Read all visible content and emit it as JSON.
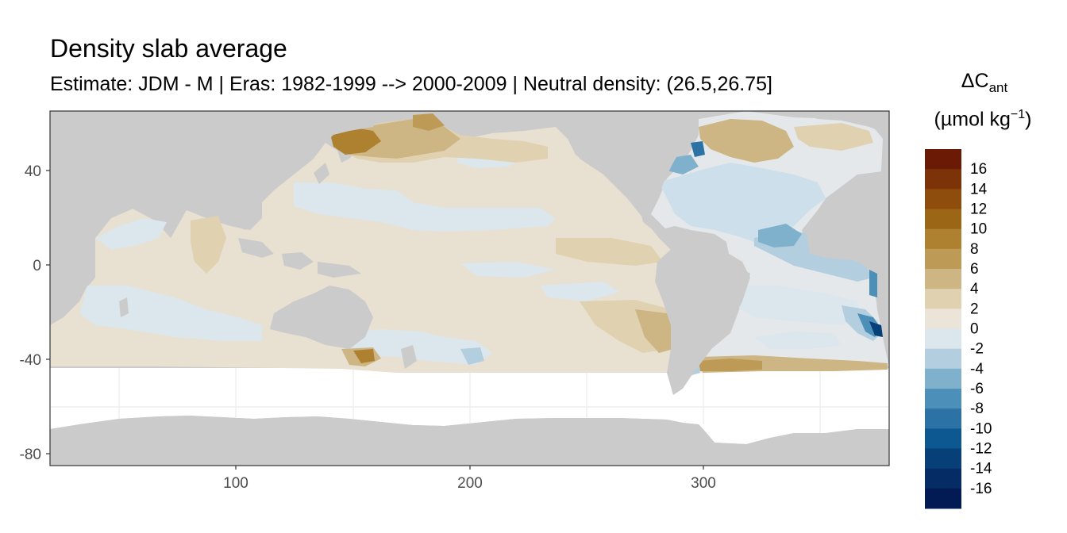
{
  "title": "Density slab average",
  "subtitle": "Estimate: JDM - M | Eras: 1982-1999 --> 2000-2009 | Neutral density: (26.5,26.75]",
  "legend": {
    "title_symbol": "ΔC",
    "title_subscript": "ant",
    "unit_prefix": "(µmol kg",
    "unit_superscript": "−1",
    "unit_suffix": ")",
    "breaks": [
      {
        "label": "16",
        "color": "#6b1a05"
      },
      {
        "label": "14",
        "color": "#7d3308"
      },
      {
        "label": "12",
        "color": "#8e4d0c"
      },
      {
        "label": "10",
        "color": "#9c6617"
      },
      {
        "label": "8",
        "color": "#ad812f"
      },
      {
        "label": "6",
        "color": "#bd9b56"
      },
      {
        "label": "4",
        "color": "#ceb584"
      },
      {
        "label": "2",
        "color": "#e0d1b1"
      },
      {
        "label": "0",
        "color": "#ebe4d8"
      },
      {
        "label": "-2",
        "color": "#dce6ed"
      },
      {
        "label": "-4",
        "color": "#b3cedf"
      },
      {
        "label": "-6",
        "color": "#7fb0cc"
      },
      {
        "label": "-8",
        "color": "#4c8fb8"
      },
      {
        "label": "-10",
        "color": "#2c72a5"
      },
      {
        "label": "-12",
        "color": "#0d5890"
      },
      {
        "label": "-14",
        "color": "#073f79"
      },
      {
        "label": "-16",
        "color": "#052c65"
      },
      {
        "label": "",
        "color": "#031b55"
      }
    ]
  },
  "axes": {
    "x_ticks": [
      "100",
      "200",
      "300"
    ],
    "y_ticks": [
      "40",
      "0",
      "-40",
      "-80"
    ]
  },
  "colors": {
    "land": "#cbcbcb",
    "ocean_no_data": "#ffffff",
    "grid": "#ebebeb",
    "border": "#333333"
  }
}
